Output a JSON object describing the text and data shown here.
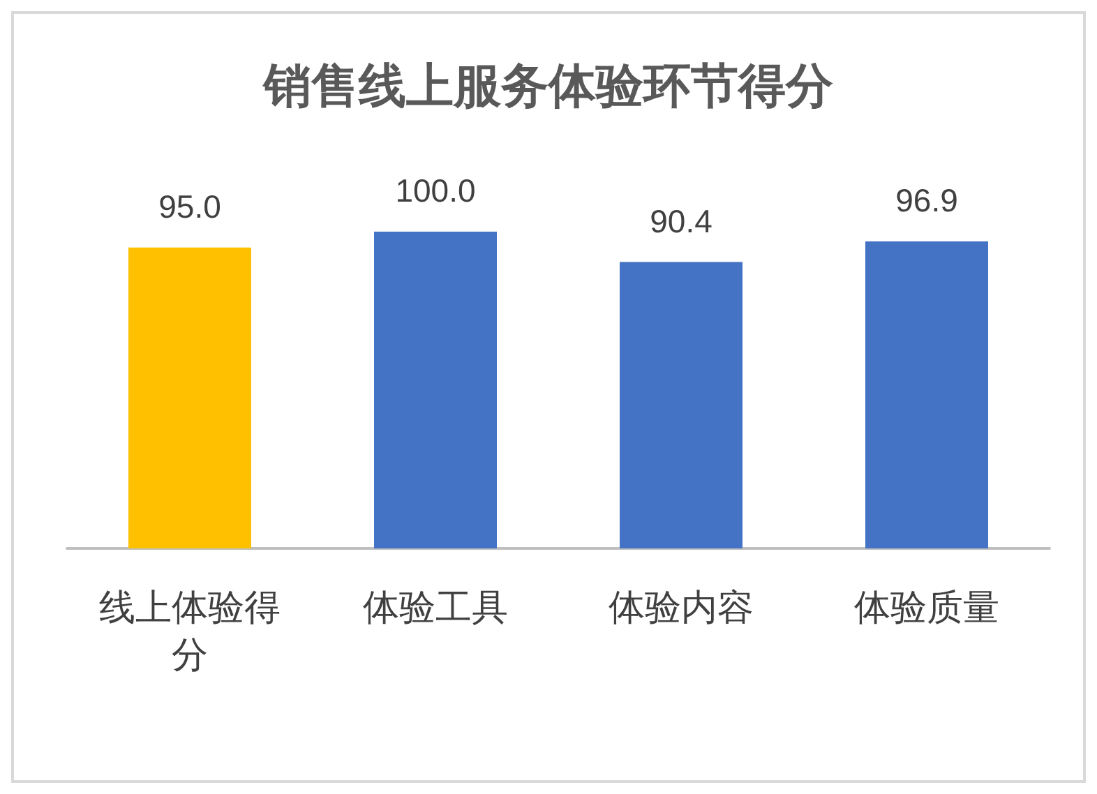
{
  "chart_data": {
    "type": "bar",
    "title": "销售线上服务体验环节得分",
    "categories": [
      "线上体验得分",
      "体验工具",
      "体验内容",
      "体验质量"
    ],
    "values": [
      95.0,
      100.0,
      90.4,
      96.9
    ],
    "colors": [
      "#ffc000",
      "#4472c4",
      "#4472c4",
      "#4472c4"
    ],
    "value_labels": [
      "95.0",
      "100.0",
      "90.4",
      "96.9"
    ]
  }
}
